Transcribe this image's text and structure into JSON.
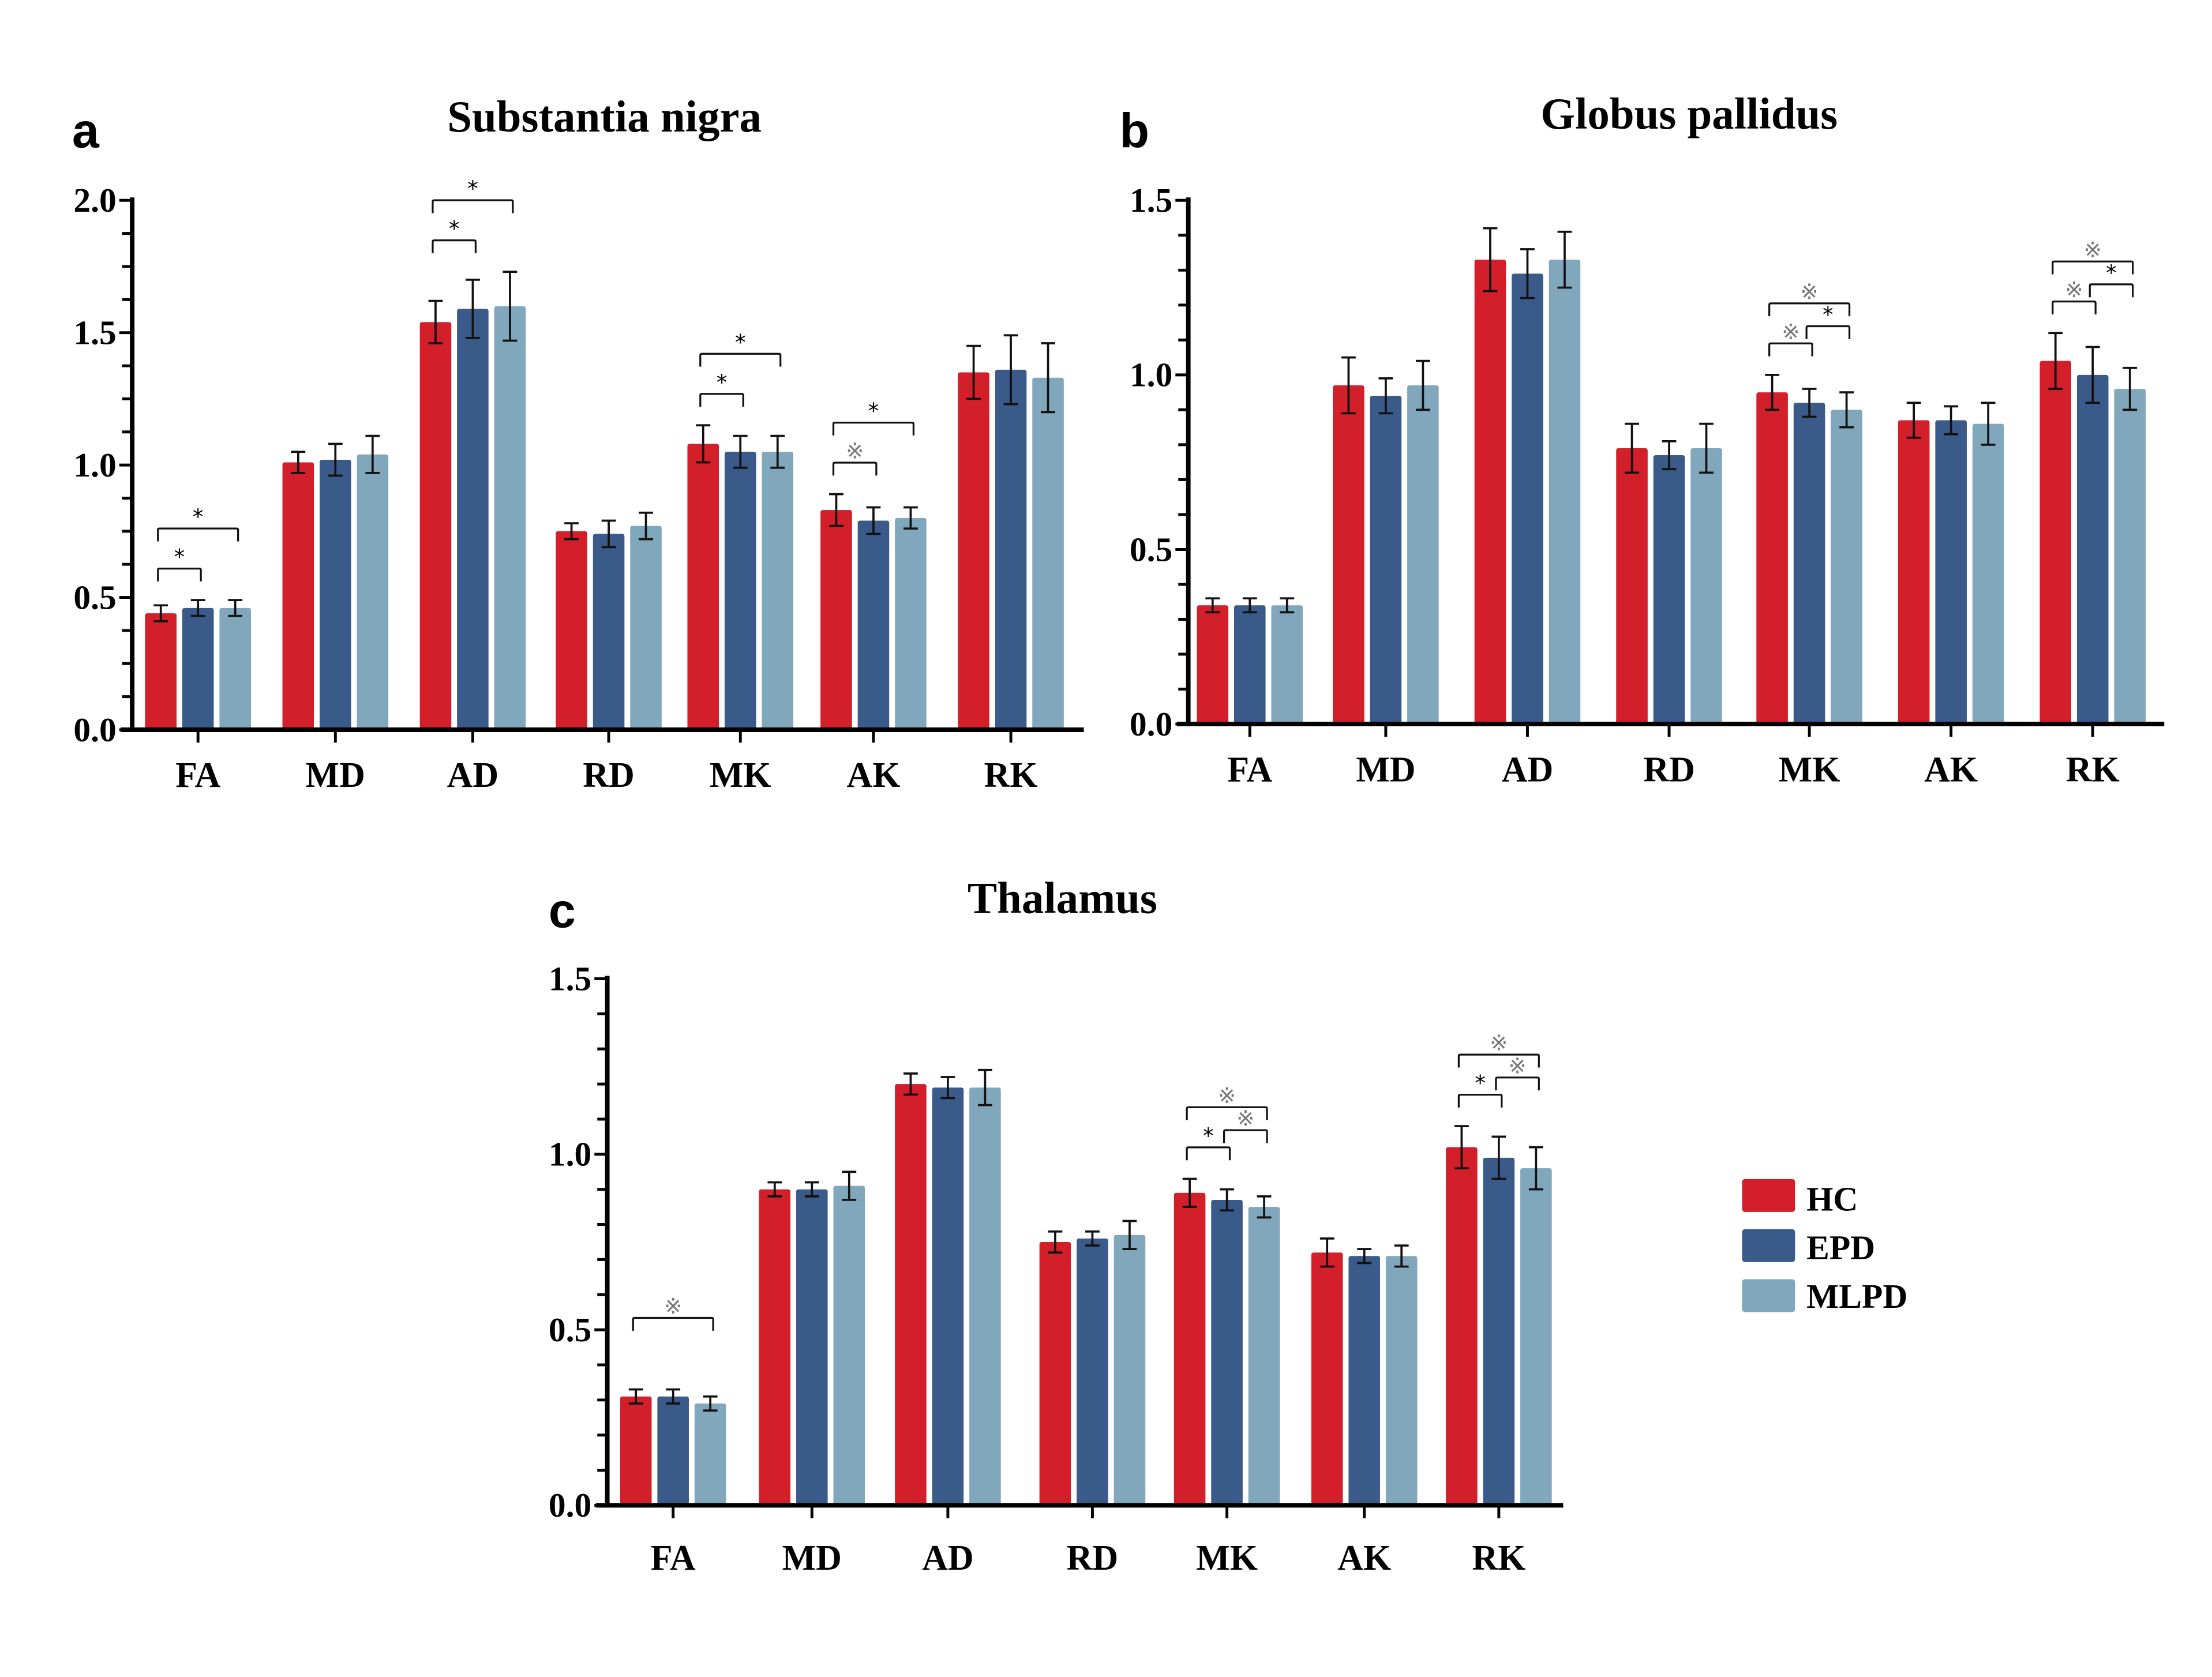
{
  "colors": {
    "HC": "#d21f29",
    "EPD": "#3a5a8a",
    "MLPD": "#80a7bb"
  },
  "legend": [
    {
      "name": "HC",
      "color": "#d21f29"
    },
    {
      "name": "EPD",
      "color": "#3a5a8a"
    },
    {
      "name": "MLPD",
      "color": "#80a7bb"
    }
  ],
  "chart_data": [
    {
      "type": "bar",
      "panel": "a",
      "title": "Substantia nigra",
      "xlabel": "",
      "ylabel": "",
      "ylim": [
        0,
        2.0
      ],
      "yticks": [
        "0.0",
        "0.5",
        "1.0",
        "1.5",
        "2.0"
      ],
      "categories": [
        "FA",
        "MD",
        "AD",
        "RD",
        "MK",
        "AK",
        "RK"
      ],
      "series": [
        {
          "name": "HC",
          "values": [
            0.44,
            1.01,
            1.54,
            0.75,
            1.08,
            0.83,
            1.35
          ],
          "errors": [
            0.03,
            0.04,
            0.08,
            0.03,
            0.07,
            0.06,
            0.1
          ]
        },
        {
          "name": "EPD",
          "values": [
            0.46,
            1.02,
            1.59,
            0.74,
            1.05,
            0.79,
            1.36
          ],
          "errors": [
            0.03,
            0.06,
            0.11,
            0.05,
            0.06,
            0.05,
            0.13
          ]
        },
        {
          "name": "MLPD",
          "values": [
            0.46,
            1.04,
            1.6,
            0.77,
            1.05,
            0.8,
            1.33
          ],
          "errors": [
            0.03,
            0.07,
            0.13,
            0.05,
            0.06,
            0.04,
            0.13
          ]
        }
      ],
      "significance": [
        {
          "category": "FA",
          "from": "HC",
          "to": "EPD",
          "mark": "*"
        },
        {
          "category": "FA",
          "from": "HC",
          "to": "MLPD",
          "mark": "*"
        },
        {
          "category": "AD",
          "from": "HC",
          "to": "EPD",
          "mark": "*"
        },
        {
          "category": "AD",
          "from": "HC",
          "to": "MLPD",
          "mark": "*"
        },
        {
          "category": "MK",
          "from": "HC",
          "to": "EPD",
          "mark": "*"
        },
        {
          "category": "MK",
          "from": "HC",
          "to": "MLPD",
          "mark": "*"
        },
        {
          "category": "AK",
          "from": "HC",
          "to": "EPD",
          "mark": "※"
        },
        {
          "category": "AK",
          "from": "HC",
          "to": "MLPD",
          "mark": "*"
        }
      ],
      "legend": "right"
    },
    {
      "type": "bar",
      "panel": "b",
      "title": "Globus pallidus",
      "xlabel": "",
      "ylabel": "",
      "ylim": [
        0,
        1.5
      ],
      "yticks": [
        "0.0",
        "0.5",
        "1.0",
        "1.5"
      ],
      "categories": [
        "FA",
        "MD",
        "AD",
        "RD",
        "MK",
        "AK",
        "RK"
      ],
      "series": [
        {
          "name": "HC",
          "values": [
            0.34,
            0.97,
            1.33,
            0.79,
            0.95,
            0.87,
            1.04
          ],
          "errors": [
            0.02,
            0.08,
            0.09,
            0.07,
            0.05,
            0.05,
            0.08
          ]
        },
        {
          "name": "EPD",
          "values": [
            0.34,
            0.94,
            1.29,
            0.77,
            0.92,
            0.87,
            1.0
          ],
          "errors": [
            0.02,
            0.05,
            0.07,
            0.04,
            0.04,
            0.04,
            0.08
          ]
        },
        {
          "name": "MLPD",
          "values": [
            0.34,
            0.97,
            1.33,
            0.79,
            0.9,
            0.86,
            0.96
          ],
          "errors": [
            0.02,
            0.07,
            0.08,
            0.07,
            0.05,
            0.06,
            0.06
          ]
        }
      ],
      "significance": [
        {
          "category": "MK",
          "from": "HC",
          "to": "EPD",
          "mark": "※"
        },
        {
          "category": "MK",
          "from": "EPD",
          "to": "MLPD",
          "mark": "*"
        },
        {
          "category": "MK",
          "from": "HC",
          "to": "MLPD",
          "mark": "※"
        },
        {
          "category": "RK",
          "from": "HC",
          "to": "EPD",
          "mark": "※"
        },
        {
          "category": "RK",
          "from": "EPD",
          "to": "MLPD",
          "mark": "*"
        },
        {
          "category": "RK",
          "from": "HC",
          "to": "MLPD",
          "mark": "※"
        }
      ]
    },
    {
      "type": "bar",
      "panel": "c",
      "title": "Thalamus",
      "xlabel": "",
      "ylabel": "",
      "ylim": [
        0,
        1.5
      ],
      "yticks": [
        "0.0",
        "0.5",
        "1.0",
        "1.5"
      ],
      "categories": [
        "FA",
        "MD",
        "AD",
        "RD",
        "MK",
        "AK",
        "RK"
      ],
      "series": [
        {
          "name": "HC",
          "values": [
            0.31,
            0.9,
            1.2,
            0.75,
            0.89,
            0.72,
            1.02
          ],
          "errors": [
            0.02,
            0.02,
            0.03,
            0.03,
            0.04,
            0.04,
            0.06
          ]
        },
        {
          "name": "EPD",
          "values": [
            0.31,
            0.9,
            1.19,
            0.76,
            0.87,
            0.71,
            0.99
          ],
          "errors": [
            0.02,
            0.02,
            0.03,
            0.02,
            0.03,
            0.02,
            0.06
          ]
        },
        {
          "name": "MLPD",
          "values": [
            0.29,
            0.91,
            1.19,
            0.77,
            0.85,
            0.71,
            0.96
          ],
          "errors": [
            0.02,
            0.04,
            0.05,
            0.04,
            0.03,
            0.03,
            0.06
          ]
        }
      ],
      "significance": [
        {
          "category": "FA",
          "from": "HC",
          "to": "MLPD",
          "mark": "※"
        },
        {
          "category": "MK",
          "from": "HC",
          "to": "EPD",
          "mark": "*"
        },
        {
          "category": "MK",
          "from": "EPD",
          "to": "MLPD",
          "mark": "※"
        },
        {
          "category": "MK",
          "from": "HC",
          "to": "MLPD",
          "mark": "※"
        },
        {
          "category": "RK",
          "from": "HC",
          "to": "EPD",
          "mark": "*"
        },
        {
          "category": "RK",
          "from": "EPD",
          "to": "MLPD",
          "mark": "※"
        },
        {
          "category": "RK",
          "from": "HC",
          "to": "MLPD",
          "mark": "※"
        }
      ]
    }
  ]
}
